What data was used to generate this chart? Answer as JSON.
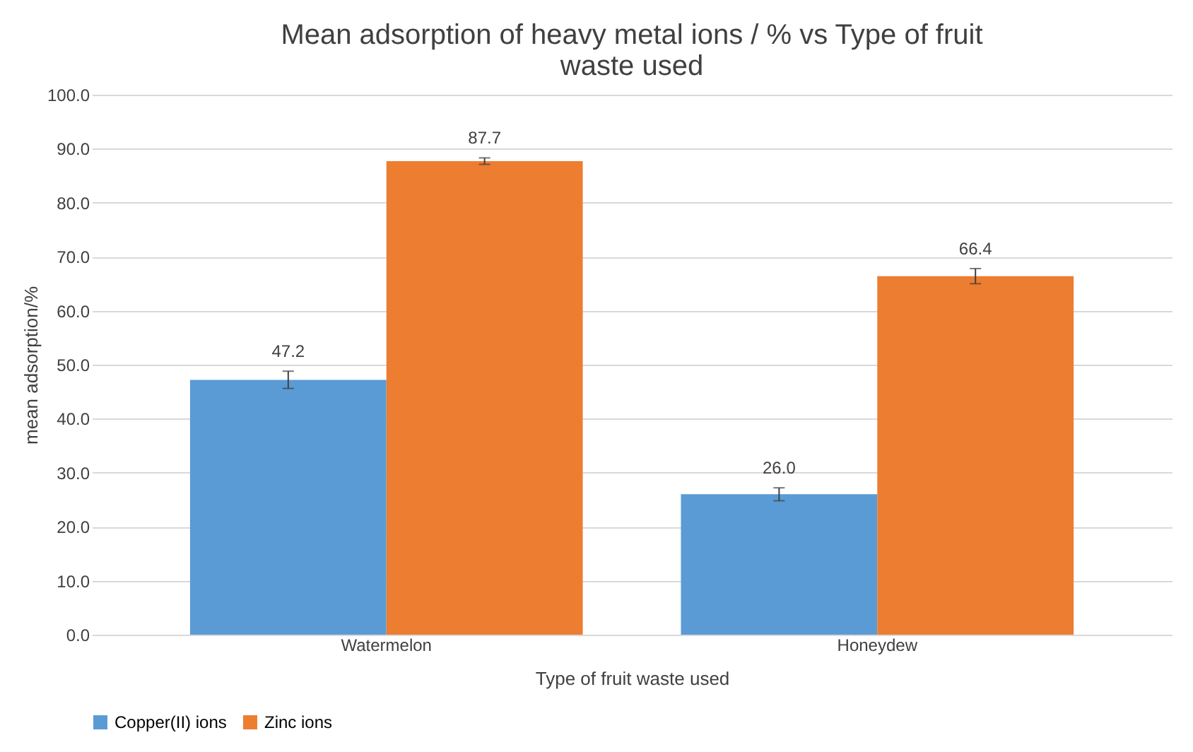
{
  "chart_data": {
    "type": "bar",
    "title": "Mean adsorption of heavy metal ions / % vs Type of fruit waste used",
    "xlabel": "Type of fruit waste used",
    "ylabel": "mean adsorption/%",
    "categories": [
      "Watermelon",
      "Honeydew"
    ],
    "series": [
      {
        "name": "Copper(II) ions",
        "color": "#5b9bd5",
        "values": [
          47.2,
          26.0
        ],
        "errors": [
          1.6,
          1.2
        ],
        "value_labels": [
          "47.2",
          "26.0"
        ]
      },
      {
        "name": "Zinc ions",
        "color": "#ed7d31",
        "values": [
          87.7,
          66.4
        ],
        "errors": [
          0.6,
          1.4
        ],
        "value_labels": [
          "87.7",
          "66.4"
        ]
      }
    ],
    "ylim": [
      0,
      100
    ],
    "yticks": [
      {
        "value": 0,
        "label": "0.0"
      },
      {
        "value": 10,
        "label": "10.0"
      },
      {
        "value": 20,
        "label": "20.0"
      },
      {
        "value": 30,
        "label": "30.0"
      },
      {
        "value": 40,
        "label": "40.0"
      },
      {
        "value": 50,
        "label": "50.0"
      },
      {
        "value": 60,
        "label": "60.0"
      },
      {
        "value": 70,
        "label": "70.0"
      },
      {
        "value": 80,
        "label": "80.0"
      },
      {
        "value": 90,
        "label": "90.0"
      },
      {
        "value": 100,
        "label": "100.0"
      }
    ],
    "grid": "y",
    "legend": "bottom"
  }
}
